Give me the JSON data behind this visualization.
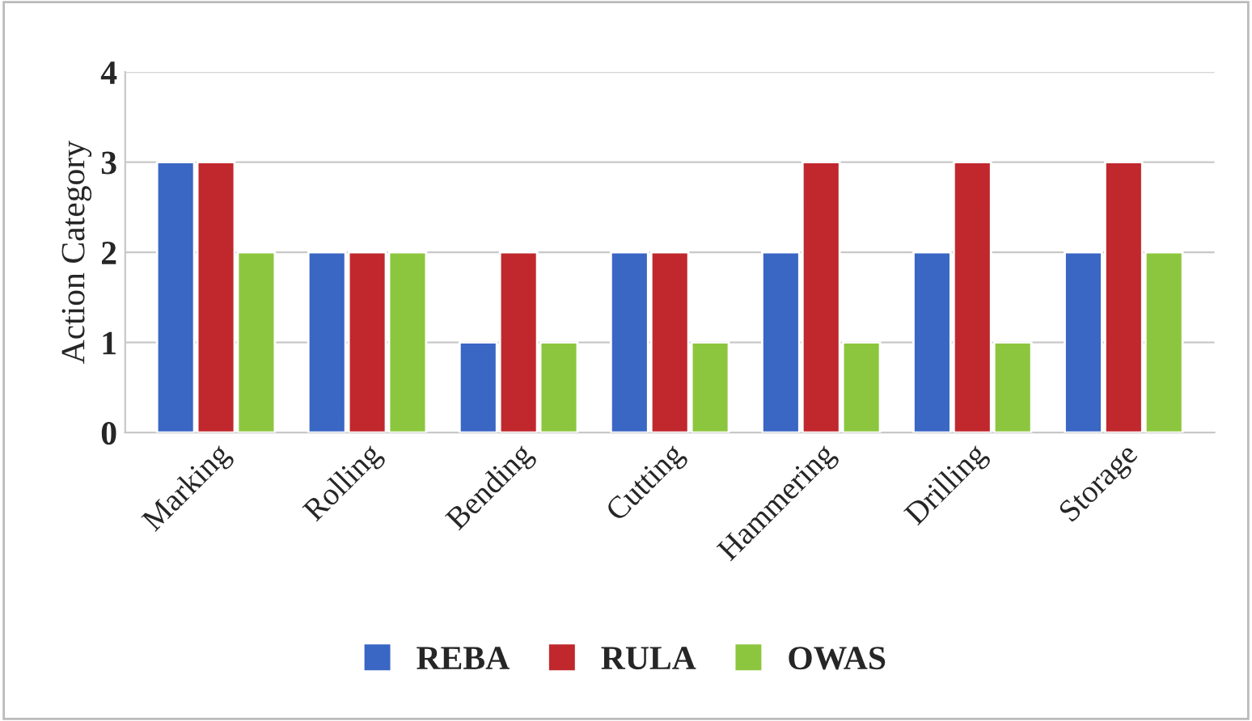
{
  "chart_data": {
    "type": "bar",
    "ylabel": "Action Category",
    "categories": [
      "Marking",
      "Rolling",
      "Bending",
      "Cutting",
      "Hammering",
      "Drilling",
      "Storage"
    ],
    "series": [
      {
        "name": "REBA",
        "color": "#3a66c4",
        "values": [
          3,
          2,
          1,
          2,
          2,
          2,
          2
        ]
      },
      {
        "name": "RULA",
        "color": "#c0282d",
        "values": [
          3,
          2,
          2,
          2,
          3,
          3,
          3
        ]
      },
      {
        "name": "OWAS",
        "color": "#8cc63e",
        "values": [
          2,
          2,
          1,
          1,
          1,
          1,
          2
        ]
      }
    ],
    "ylim": [
      0,
      4
    ],
    "yticks": [
      0,
      1,
      2,
      3,
      4
    ],
    "grid": "y",
    "legend": "bottom"
  }
}
